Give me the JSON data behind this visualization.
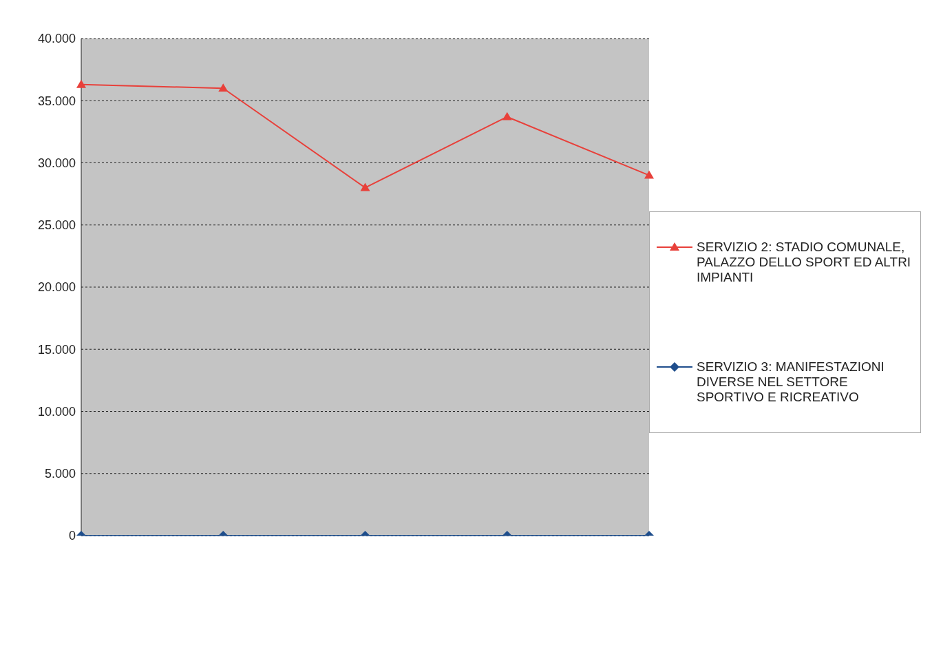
{
  "chart_data": {
    "type": "line",
    "categories": [
      null,
      null,
      null,
      null,
      null
    ],
    "series": [
      {
        "name": "SERVIZIO 2: STADIO COMUNALE, PALAZZO DELLO SPORT ED ALTRI IMPIANTI",
        "color": "#e8403a",
        "marker": "triangle",
        "values": [
          36300,
          36000,
          28000,
          33700,
          29000
        ]
      },
      {
        "name": "SERVIZIO 3: MANIFESTAZIONI DIVERSE NEL SETTORE SPORTIVO E RICREATIVO",
        "color": "#1f4e8c",
        "marker": "diamond",
        "values": [
          0,
          0,
          0,
          0,
          0
        ]
      }
    ],
    "ylim": [
      0,
      40000
    ],
    "yticks": [
      {
        "value": 0,
        "label": "0"
      },
      {
        "value": 5000,
        "label": "5.000"
      },
      {
        "value": 10000,
        "label": "10.000"
      },
      {
        "value": 15000,
        "label": "15.000"
      },
      {
        "value": 20000,
        "label": "20.000"
      },
      {
        "value": 25000,
        "label": "25.000"
      },
      {
        "value": 30000,
        "label": "30.000"
      },
      {
        "value": 35000,
        "label": "35.000"
      },
      {
        "value": 40000,
        "label": "40.000"
      }
    ],
    "grid": "y",
    "legend": "right",
    "tick_labels": "y",
    "line_style": "solid"
  }
}
